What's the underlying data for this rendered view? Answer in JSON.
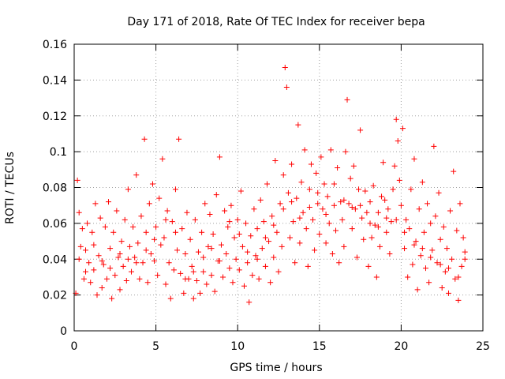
{
  "chart_data": {
    "type": "scatter",
    "title": "Day 171 of 2018, Rate Of TEC Index for receiver bepa",
    "xlabel": "GPS time / hours",
    "ylabel": "ROTI / TECUs",
    "xlim": [
      0,
      25
    ],
    "ylim": [
      0,
      0.16
    ],
    "grid": true,
    "marker": "+",
    "color": "#ff0000",
    "xticks": [
      0,
      5,
      10,
      15,
      20,
      25
    ],
    "yticks": [
      0,
      0.02,
      0.04,
      0.06,
      0.08,
      0.1,
      0.12,
      0.14,
      0.16
    ],
    "xtick_labels": [
      "0",
      "5",
      "10",
      "15",
      "20",
      "25"
    ],
    "ytick_labels": [
      "0",
      "0.02",
      "0.04",
      "0.06",
      "0.08",
      "0.1",
      "0.12",
      "0.14",
      "0.16"
    ],
    "points": [
      [
        0.1,
        0.021
      ],
      [
        0.2,
        0.084
      ],
      [
        0.3,
        0.066
      ],
      [
        0.4,
        0.047
      ],
      [
        0.5,
        0.057
      ],
      [
        0.6,
        0.029
      ],
      [
        0.7,
        0.045
      ],
      [
        0.8,
        0.06
      ],
      [
        0.9,
        0.038
      ],
      [
        1.0,
        0.027
      ],
      [
        1.1,
        0.055
      ],
      [
        1.2,
        0.034
      ],
      [
        1.3,
        0.071
      ],
      [
        1.4,
        0.02
      ],
      [
        1.5,
        0.042
      ],
      [
        1.6,
        0.063
      ],
      [
        1.7,
        0.024
      ],
      [
        1.8,
        0.037
      ],
      [
        1.9,
        0.058
      ],
      [
        2.0,
        0.029
      ],
      [
        2.1,
        0.072
      ],
      [
        2.2,
        0.046
      ],
      [
        2.3,
        0.018
      ],
      [
        2.4,
        0.055
      ],
      [
        2.5,
        0.031
      ],
      [
        2.6,
        0.067
      ],
      [
        2.7,
        0.041
      ],
      [
        2.8,
        0.023
      ],
      [
        2.9,
        0.05
      ],
      [
        3.0,
        0.036
      ],
      [
        3.1,
        0.062
      ],
      [
        3.2,
        0.028
      ],
      [
        3.3,
        0.079
      ],
      [
        3.4,
        0.047
      ],
      [
        3.5,
        0.033
      ],
      [
        3.6,
        0.058
      ],
      [
        3.7,
        0.041
      ],
      [
        3.8,
        0.087
      ],
      [
        3.9,
        0.049
      ],
      [
        4.0,
        0.029
      ],
      [
        4.1,
        0.064
      ],
      [
        4.2,
        0.038
      ],
      [
        4.3,
        0.107
      ],
      [
        4.4,
        0.055
      ],
      [
        4.5,
        0.027
      ],
      [
        4.6,
        0.071
      ],
      [
        4.7,
        0.043
      ],
      [
        4.8,
        0.082
      ],
      [
        4.9,
        0.039
      ],
      [
        5.0,
        0.058
      ],
      [
        5.1,
        0.031
      ],
      [
        5.2,
        0.074
      ],
      [
        5.3,
        0.048
      ],
      [
        5.4,
        0.096
      ],
      [
        5.5,
        0.052
      ],
      [
        5.6,
        0.026
      ],
      [
        5.7,
        0.067
      ],
      [
        5.8,
        0.038
      ],
      [
        5.9,
        0.018
      ],
      [
        6.0,
        0.061
      ],
      [
        6.1,
        0.034
      ],
      [
        6.2,
        0.079
      ],
      [
        6.3,
        0.045
      ],
      [
        6.4,
        0.107
      ],
      [
        6.5,
        0.032
      ],
      [
        6.6,
        0.057
      ],
      [
        6.7,
        0.021
      ],
      [
        6.8,
        0.043
      ],
      [
        6.9,
        0.066
      ],
      [
        7.0,
        0.029
      ],
      [
        7.1,
        0.051
      ],
      [
        7.2,
        0.036
      ],
      [
        7.3,
        0.018
      ],
      [
        7.4,
        0.062
      ],
      [
        7.5,
        0.028
      ],
      [
        7.6,
        0.044
      ],
      [
        7.7,
        0.021
      ],
      [
        7.8,
        0.055
      ],
      [
        7.9,
        0.033
      ],
      [
        8.0,
        0.071
      ],
      [
        8.1,
        0.026
      ],
      [
        8.2,
        0.047
      ],
      [
        8.3,
        0.065
      ],
      [
        8.4,
        0.031
      ],
      [
        8.5,
        0.054
      ],
      [
        8.6,
        0.022
      ],
      [
        8.7,
        0.076
      ],
      [
        8.8,
        0.039
      ],
      [
        8.9,
        0.097
      ],
      [
        9.0,
        0.048
      ],
      [
        9.1,
        0.03
      ],
      [
        9.2,
        0.067
      ],
      [
        9.3,
        0.043
      ],
      [
        9.4,
        0.058
      ],
      [
        9.5,
        0.035
      ],
      [
        9.6,
        0.07
      ],
      [
        9.7,
        0.027
      ],
      [
        9.8,
        0.052
      ],
      [
        9.9,
        0.04
      ],
      [
        10.0,
        0.062
      ],
      [
        10.1,
        0.034
      ],
      [
        10.2,
        0.078
      ],
      [
        10.3,
        0.047
      ],
      [
        10.4,
        0.025
      ],
      [
        10.5,
        0.06
      ],
      [
        10.6,
        0.038
      ],
      [
        10.7,
        0.016
      ],
      [
        10.8,
        0.053
      ],
      [
        10.9,
        0.031
      ],
      [
        11.0,
        0.068
      ],
      [
        11.1,
        0.042
      ],
      [
        11.2,
        0.057
      ],
      [
        11.3,
        0.029
      ],
      [
        11.4,
        0.073
      ],
      [
        11.5,
        0.046
      ],
      [
        11.6,
        0.061
      ],
      [
        11.7,
        0.036
      ],
      [
        11.8,
        0.082
      ],
      [
        11.9,
        0.05
      ],
      [
        12.0,
        0.027
      ],
      [
        12.1,
        0.064
      ],
      [
        12.2,
        0.041
      ],
      [
        12.3,
        0.095
      ],
      [
        12.4,
        0.055
      ],
      [
        12.5,
        0.033
      ],
      [
        12.6,
        0.071
      ],
      [
        12.7,
        0.047
      ],
      [
        12.8,
        0.087
      ],
      [
        12.9,
        0.147
      ],
      [
        13.0,
        0.136
      ],
      [
        13.1,
        0.077
      ],
      [
        13.2,
        0.052
      ],
      [
        13.3,
        0.093
      ],
      [
        13.4,
        0.061
      ],
      [
        13.5,
        0.038
      ],
      [
        13.6,
        0.074
      ],
      [
        13.7,
        0.115
      ],
      [
        13.8,
        0.049
      ],
      [
        13.9,
        0.083
      ],
      [
        14.0,
        0.066
      ],
      [
        14.1,
        0.101
      ],
      [
        14.2,
        0.057
      ],
      [
        14.3,
        0.036
      ],
      [
        14.4,
        0.079
      ],
      [
        14.5,
        0.093
      ],
      [
        14.6,
        0.062
      ],
      [
        14.7,
        0.045
      ],
      [
        14.8,
        0.088
      ],
      [
        14.9,
        0.071
      ],
      [
        15.0,
        0.054
      ],
      [
        15.1,
        0.097
      ],
      [
        15.2,
        0.068
      ],
      [
        15.3,
        0.082
      ],
      [
        15.4,
        0.049
      ],
      [
        15.5,
        0.075
      ],
      [
        15.6,
        0.06
      ],
      [
        15.7,
        0.101
      ],
      [
        15.8,
        0.043
      ],
      [
        15.9,
        0.07
      ],
      [
        16.0,
        0.056
      ],
      [
        16.1,
        0.091
      ],
      [
        16.2,
        0.038
      ],
      [
        16.3,
        0.072
      ],
      [
        16.4,
        0.062
      ],
      [
        16.5,
        0.047
      ],
      [
        16.6,
        0.1
      ],
      [
        16.7,
        0.129
      ],
      [
        16.8,
        0.071
      ],
      [
        16.9,
        0.085
      ],
      [
        17.0,
        0.057
      ],
      [
        17.1,
        0.092
      ],
      [
        17.2,
        0.068
      ],
      [
        17.3,
        0.041
      ],
      [
        17.4,
        0.079
      ],
      [
        17.5,
        0.112
      ],
      [
        17.6,
        0.063
      ],
      [
        17.7,
        0.051
      ],
      [
        17.8,
        0.078
      ],
      [
        17.9,
        0.066
      ],
      [
        18.0,
        0.036
      ],
      [
        18.1,
        0.072
      ],
      [
        18.2,
        0.052
      ],
      [
        18.3,
        0.081
      ],
      [
        18.4,
        0.059
      ],
      [
        18.5,
        0.03
      ],
      [
        18.6,
        0.066
      ],
      [
        18.7,
        0.047
      ],
      [
        18.8,
        0.075
      ],
      [
        18.9,
        0.094
      ],
      [
        19.0,
        0.073
      ],
      [
        19.1,
        0.055
      ],
      [
        19.2,
        0.068
      ],
      [
        19.3,
        0.043
      ],
      [
        19.4,
        0.061
      ],
      [
        19.5,
        0.079
      ],
      [
        19.6,
        0.092
      ],
      [
        19.7,
        0.118
      ],
      [
        19.8,
        0.106
      ],
      [
        19.9,
        0.084
      ],
      [
        20.0,
        0.07
      ],
      [
        20.1,
        0.113
      ],
      [
        20.2,
        0.046
      ],
      [
        20.3,
        0.062
      ],
      [
        20.4,
        0.03
      ],
      [
        20.5,
        0.057
      ],
      [
        20.6,
        0.079
      ],
      [
        20.7,
        0.037
      ],
      [
        20.8,
        0.096
      ],
      [
        20.9,
        0.05
      ],
      [
        21.0,
        0.023
      ],
      [
        21.1,
        0.068
      ],
      [
        21.2,
        0.042
      ],
      [
        21.3,
        0.083
      ],
      [
        21.4,
        0.055
      ],
      [
        21.5,
        0.035
      ],
      [
        21.6,
        0.071
      ],
      [
        21.7,
        0.027
      ],
      [
        21.8,
        0.06
      ],
      [
        21.9,
        0.045
      ],
      [
        22.0,
        0.103
      ],
      [
        22.1,
        0.064
      ],
      [
        22.2,
        0.038
      ],
      [
        22.3,
        0.077
      ],
      [
        22.4,
        0.051
      ],
      [
        22.5,
        0.024
      ],
      [
        22.6,
        0.058
      ],
      [
        22.7,
        0.033
      ],
      [
        22.8,
        0.046
      ],
      [
        22.9,
        0.021
      ],
      [
        23.0,
        0.067
      ],
      [
        23.1,
        0.04
      ],
      [
        23.2,
        0.089
      ],
      [
        23.3,
        0.029
      ],
      [
        23.4,
        0.056
      ],
      [
        23.5,
        0.017
      ],
      [
        23.6,
        0.071
      ],
      [
        23.7,
        0.036
      ],
      [
        23.8,
        0.052
      ],
      [
        23.9,
        0.044
      ],
      [
        0.3,
        0.04
      ],
      [
        0.7,
        0.033
      ],
      [
        1.2,
        0.048
      ],
      [
        1.7,
        0.039
      ],
      [
        2.2,
        0.035
      ],
      [
        2.8,
        0.043
      ],
      [
        3.3,
        0.04
      ],
      [
        3.8,
        0.038
      ],
      [
        4.4,
        0.045
      ],
      [
        4.9,
        0.051
      ],
      [
        5.6,
        0.062
      ],
      [
        6.2,
        0.055
      ],
      [
        6.8,
        0.029
      ],
      [
        7.3,
        0.033
      ],
      [
        7.9,
        0.041
      ],
      [
        8.4,
        0.046
      ],
      [
        8.9,
        0.039
      ],
      [
        9.5,
        0.061
      ],
      [
        10.1,
        0.054
      ],
      [
        10.6,
        0.044
      ],
      [
        11.2,
        0.04
      ],
      [
        11.7,
        0.052
      ],
      [
        12.2,
        0.059
      ],
      [
        12.8,
        0.068
      ],
      [
        13.3,
        0.072
      ],
      [
        13.8,
        0.063
      ],
      [
        14.4,
        0.069
      ],
      [
        14.9,
        0.077
      ],
      [
        15.4,
        0.065
      ],
      [
        15.9,
        0.082
      ],
      [
        16.5,
        0.073
      ],
      [
        17.0,
        0.069
      ],
      [
        17.5,
        0.07
      ],
      [
        18.1,
        0.06
      ],
      [
        18.6,
        0.058
      ],
      [
        19.1,
        0.063
      ],
      [
        19.7,
        0.062
      ],
      [
        20.2,
        0.055
      ],
      [
        20.8,
        0.048
      ],
      [
        21.3,
        0.046
      ],
      [
        21.8,
        0.041
      ],
      [
        22.4,
        0.037
      ],
      [
        22.9,
        0.035
      ],
      [
        23.5,
        0.03
      ],
      [
        23.9,
        0.04
      ]
    ]
  }
}
